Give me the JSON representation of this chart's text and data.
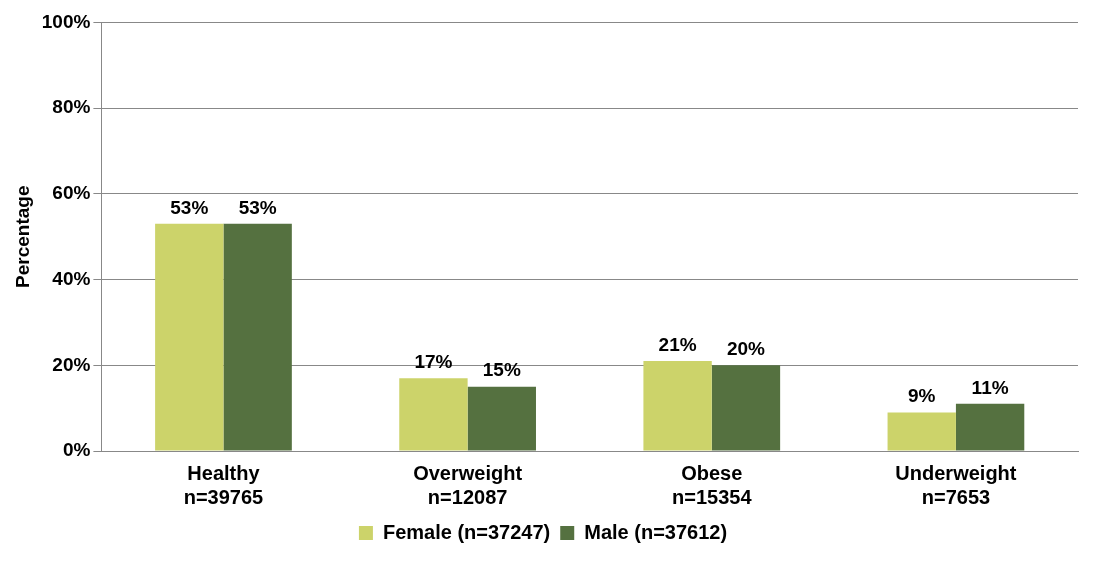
{
  "chart_data": {
    "type": "bar",
    "ylabel": "Percentage",
    "categories": [
      "Healthy\nn=39765",
      "Overweight\nn=12087",
      "Obese\nn=15354",
      "Underweight\nn=7653"
    ],
    "series": [
      {
        "name": "Female (n=37247)",
        "color": "#ccd36a",
        "values": [
          53,
          17,
          21,
          9
        ],
        "value_labels": [
          "53%",
          "17%",
          "21%",
          "9%"
        ]
      },
      {
        "name": "Male (n=37612)",
        "color": "#557140",
        "values": [
          53,
          15,
          20,
          11
        ],
        "value_labels": [
          "53%",
          "15%",
          "20%",
          "11%"
        ]
      }
    ],
    "ylim": [
      0,
      100
    ],
    "yticks": [
      {
        "value": 0,
        "label": "0%"
      },
      {
        "value": 20,
        "label": "20%"
      },
      {
        "value": 40,
        "label": "40%"
      },
      {
        "value": 60,
        "label": "60%"
      },
      {
        "value": 80,
        "label": "80%"
      },
      {
        "value": 100,
        "label": "100%"
      }
    ],
    "grid": "y",
    "legend": "bottom"
  }
}
